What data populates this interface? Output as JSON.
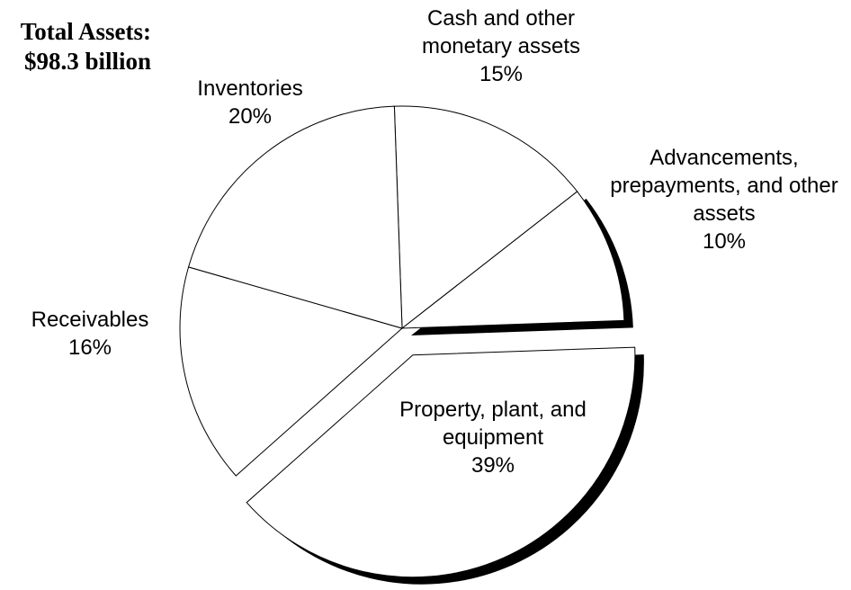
{
  "chart_data": {
    "type": "pie",
    "title": "Total Assets:",
    "subtitle": "$98.3 billion",
    "categories": [
      "Cash and other monetary assets",
      "Advancements, prepayments, and other assets",
      "Property, plant, and equipment",
      "Receivables",
      "Inventories"
    ],
    "values": [
      15,
      10,
      39,
      16,
      20
    ],
    "value_labels": [
      "15%",
      "10%",
      "39%",
      "16%",
      "20%"
    ],
    "exploded": "Property, plant, and equipment",
    "color": "#ffffff"
  }
}
